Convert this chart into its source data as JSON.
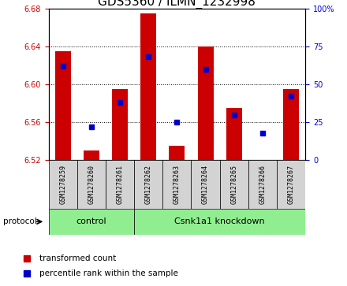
{
  "title": "GDS5360 / ILMN_1232998",
  "samples": [
    "GSM1278259",
    "GSM1278260",
    "GSM1278261",
    "GSM1278262",
    "GSM1278263",
    "GSM1278264",
    "GSM1278265",
    "GSM1278266",
    "GSM1278267"
  ],
  "transformed_count": [
    6.635,
    6.53,
    6.595,
    6.675,
    6.535,
    6.64,
    6.575,
    6.52,
    6.595
  ],
  "percentile_rank": [
    62,
    22,
    38,
    68,
    25,
    60,
    30,
    18,
    42
  ],
  "bar_bottom": 6.52,
  "ylim": [
    6.52,
    6.68
  ],
  "yticks": [
    6.52,
    6.56,
    6.6,
    6.64,
    6.68
  ],
  "right_yticks": [
    0,
    25,
    50,
    75,
    100
  ],
  "bar_color": "#cc0000",
  "dot_color": "#0000cc",
  "control_samples": 3,
  "group_labels": [
    "control",
    "Csnk1a1 knockdown"
  ],
  "group_color": "#90ee90",
  "ylabel_color": "#cc0000",
  "right_ylabel_color": "#0000cc",
  "title_fontsize": 11,
  "tick_fontsize": 7,
  "legend_items": [
    "transformed count",
    "percentile rank within the sample"
  ],
  "legend_colors": [
    "#cc0000",
    "#0000cc"
  ]
}
